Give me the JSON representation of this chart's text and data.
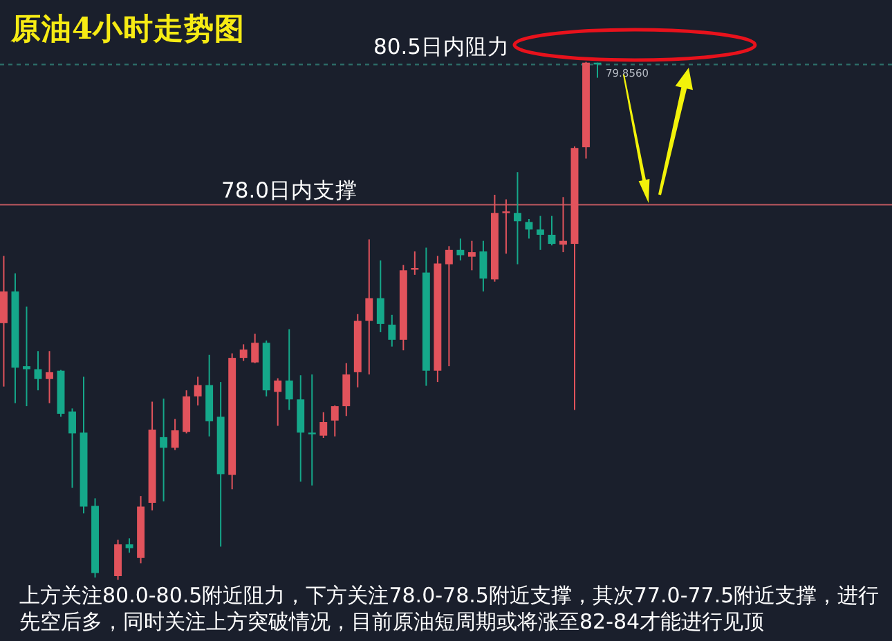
{
  "chart_data": {
    "type": "candlestick",
    "title": "原油4小时走势图",
    "categories": [
      null,
      null,
      null,
      null,
      null,
      null,
      null,
      null,
      null,
      null,
      null,
      null,
      null,
      null,
      null,
      null,
      null,
      null,
      null,
      null,
      null,
      null,
      null,
      null,
      null,
      null,
      null,
      null,
      null,
      null,
      null,
      null,
      null,
      null,
      null,
      null,
      null,
      null,
      null,
      null,
      null,
      null,
      null,
      null,
      null,
      null,
      null,
      null,
      null,
      null,
      null,
      null,
      null
    ],
    "ohlc": [
      [
        76.43,
        77.32,
        75.59,
        76.85
      ],
      [
        76.85,
        77.09,
        75.37,
        75.84
      ],
      [
        75.86,
        76.65,
        75.33,
        75.82
      ],
      [
        75.82,
        76.06,
        75.54,
        75.69
      ],
      [
        75.69,
        76.06,
        75.37,
        75.78
      ],
      [
        75.8,
        75.81,
        75.19,
        75.23
      ],
      [
        75.26,
        75.3,
        74.25,
        74.97
      ],
      [
        74.98,
        75.72,
        73.91,
        74.0
      ],
      [
        74.01,
        74.11,
        73.06,
        73.12
      ],
      null,
      [
        73.08,
        73.56,
        73.03,
        73.5
      ],
      [
        73.5,
        73.58,
        73.39,
        73.45
      ],
      [
        73.32,
        74.14,
        73.25,
        74.0
      ],
      [
        74.05,
        75.39,
        73.95,
        75.02
      ],
      [
        74.92,
        75.43,
        74.07,
        74.78
      ],
      [
        74.78,
        75.16,
        74.75,
        75.01
      ],
      [
        74.99,
        75.54,
        74.97,
        75.46
      ],
      [
        75.46,
        75.72,
        75.34,
        75.61
      ],
      [
        75.61,
        76.01,
        74.93,
        75.13
      ],
      [
        75.19,
        75.65,
        73.47,
        74.43
      ],
      [
        74.42,
        76.03,
        74.23,
        75.97
      ],
      [
        75.97,
        76.15,
        75.93,
        76.08
      ],
      [
        75.91,
        76.29,
        75.9,
        76.17
      ],
      [
        76.17,
        76.2,
        75.46,
        75.54
      ],
      [
        75.52,
        75.7,
        75.07,
        75.67
      ],
      [
        75.67,
        76.35,
        75.28,
        75.42
      ],
      [
        75.42,
        75.74,
        74.33,
        74.98
      ],
      [
        74.98,
        75.75,
        74.28,
        74.96
      ],
      [
        74.94,
        75.25,
        74.91,
        75.12
      ],
      [
        75.14,
        75.34,
        74.93,
        75.33
      ],
      [
        75.33,
        75.9,
        75.2,
        75.75
      ],
      [
        75.78,
        76.55,
        75.58,
        76.46
      ],
      [
        76.46,
        77.54,
        75.75,
        76.76
      ],
      [
        76.76,
        77.26,
        76.31,
        76.42
      ],
      [
        76.41,
        76.54,
        76.12,
        76.21
      ],
      [
        76.21,
        77.2,
        76.07,
        77.13
      ],
      [
        77.14,
        77.38,
        77.07,
        77.16
      ],
      [
        77.1,
        77.43,
        75.6,
        75.8
      ],
      [
        75.8,
        77.32,
        75.65,
        77.22
      ],
      [
        77.21,
        77.45,
        75.86,
        77.4
      ],
      [
        77.4,
        77.55,
        77.26,
        77.33
      ],
      [
        77.31,
        77.52,
        77.13,
        77.37
      ],
      [
        77.38,
        77.52,
        76.85,
        77.02
      ],
      [
        77.01,
        78.13,
        76.98,
        77.89
      ],
      [
        77.89,
        78.07,
        77.35,
        77.91
      ],
      [
        77.89,
        78.43,
        77.21,
        77.78
      ],
      [
        77.77,
        77.81,
        77.55,
        77.67
      ],
      [
        77.67,
        77.85,
        77.4,
        77.6
      ],
      [
        77.6,
        77.85,
        77.46,
        77.48
      ],
      [
        77.47,
        78.1,
        77.37,
        77.52
      ],
      [
        77.48,
        78.77,
        75.28,
        78.75
      ],
      [
        78.76,
        79.89,
        78.61,
        79.88
      ],
      [
        79.88,
        79.88,
        79.68,
        79.856
      ]
    ],
    "colors": [
      "#e2535c",
      "#15a88a",
      "#15a88a",
      "#15a88a",
      "#e2535c",
      "#15a88a",
      "#15a88a",
      "#15a88a",
      "#15a88a",
      null,
      "#e2535c",
      "#15a88a",
      "#e2535c",
      "#e2535c",
      "#15a88a",
      "#e2535c",
      "#e2535c",
      "#e2535c",
      "#15a88a",
      "#15a88a",
      "#e2535c",
      "#e2535c",
      "#e2535c",
      "#15a88a",
      "#e2535c",
      "#15a88a",
      "#15a88a",
      "#15a88a",
      "#e2535c",
      "#e2535c",
      "#e2535c",
      "#e2535c",
      "#e2535c",
      "#15a88a",
      "#15a88a",
      "#e2535c",
      "#e2535c",
      "#15a88a",
      "#e2535c",
      "#e2535c",
      "#15a88a",
      "#e2535c",
      "#15a88a",
      "#e2535c",
      "#e2535c",
      "#15a88a",
      "#15a88a",
      "#15a88a",
      "#15a88a",
      "#e2535c",
      "#e2535c",
      "#e2535c",
      "#15a88a"
    ],
    "ylim": [
      72.22,
      80.71
    ],
    "ref_lines": [
      {
        "axis": "y",
        "value": 78.0,
        "label": "78.0日内支撑",
        "color": "#a44f57",
        "line_style": "solid"
      },
      {
        "axis": "y",
        "value": 79.856,
        "label": "79.8560",
        "color": "#2d6f6a",
        "line_style": "dashed"
      }
    ],
    "annotations": [
      "80.5日内阻力",
      "上方关注80.0-80.5附近阻力，下方关注78.0-78.5附近支撑，其次77.0-77.5附近支撑，进行先空后多，同时关注上方突破情况，目前原油短周期或将涨至82-84才能进行见顶"
    ]
  }
}
